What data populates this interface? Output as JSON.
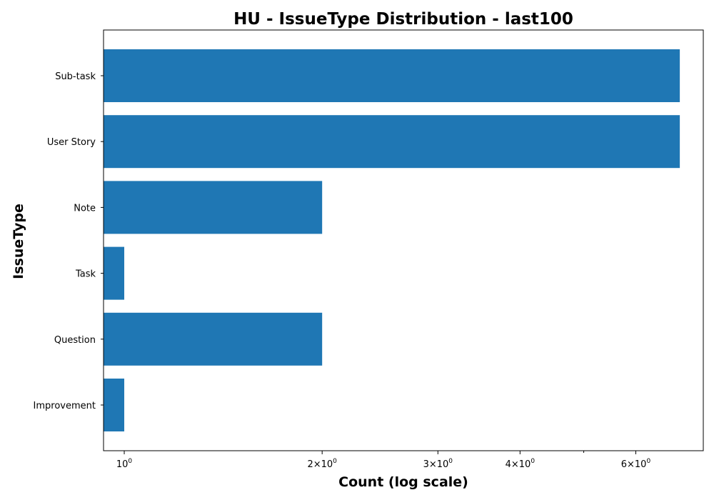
{
  "chart_data": {
    "type": "bar",
    "orientation": "horizontal",
    "title": "HU - IssueType Distribution - last100",
    "xlabel": "Count (log scale)",
    "ylabel": "IssueType",
    "x_scale": "log",
    "xlim": [
      0.93,
      7.6
    ],
    "categories": [
      "Sub-task",
      "User Story",
      "Note",
      "Task",
      "Question",
      "Improvement"
    ],
    "values": [
      7,
      7,
      2,
      1,
      2,
      1
    ],
    "bar_color": "#1f77b4",
    "major_ticks": [
      {
        "value": 1,
        "base": "10",
        "exp": "0"
      },
      {
        "value": 2,
        "base": "2×10",
        "exp": "0"
      },
      {
        "value": 3,
        "base": "3×10",
        "exp": "0"
      },
      {
        "value": 4,
        "base": "4×10",
        "exp": "0"
      },
      {
        "value": 6,
        "base": "6×10",
        "exp": "0"
      }
    ],
    "minor_ticks": [
      5
    ],
    "grid": false,
    "legend": "none"
  }
}
